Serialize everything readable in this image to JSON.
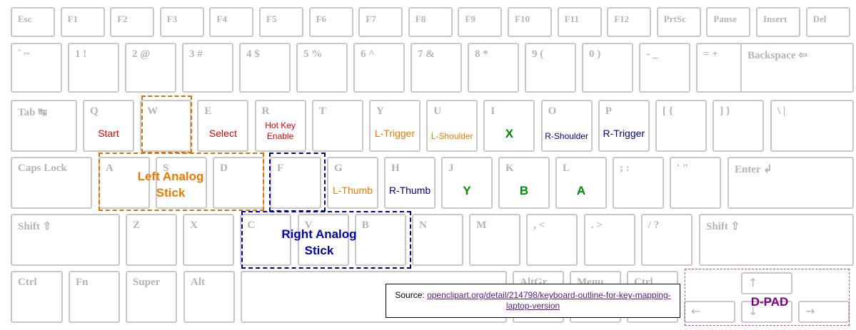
{
  "keyboard": {
    "rows": [
      [
        {
          "label": "Esc"
        },
        {
          "label": "F1"
        },
        {
          "label": "F2"
        },
        {
          "label": "F3"
        },
        {
          "label": "F4"
        },
        {
          "label": "F5"
        },
        {
          "label": "F6"
        },
        {
          "label": "F7"
        },
        {
          "label": "F8"
        },
        {
          "label": "F9"
        },
        {
          "label": "F10"
        },
        {
          "label": "F11"
        },
        {
          "label": "F12"
        },
        {
          "label": "PrtSc"
        },
        {
          "label": "Pause"
        },
        {
          "label": "Insert"
        },
        {
          "label": "Del"
        }
      ],
      [
        {
          "label": "` ~"
        },
        {
          "label": "1 !"
        },
        {
          "label": "2 @"
        },
        {
          "label": "3 #"
        },
        {
          "label": "4 $"
        },
        {
          "label": "5 %"
        },
        {
          "label": "6 ^"
        },
        {
          "label": "7 &"
        },
        {
          "label": "8 *"
        },
        {
          "label": "9 ("
        },
        {
          "label": "0 )"
        },
        {
          "label": "- _"
        },
        {
          "label": "= +"
        },
        {
          "label": "Backspace ⇦"
        }
      ],
      [
        {
          "label": "Tab ↹"
        },
        {
          "label": "Q",
          "action": "Start",
          "color": "#e00000"
        },
        {
          "label": "W"
        },
        {
          "label": "E",
          "action": "Select",
          "color": "#e00000"
        },
        {
          "label": "R",
          "action": "Hot Key Enable",
          "color": "#e00000"
        },
        {
          "label": "T"
        },
        {
          "label": "Y",
          "action": "L-Trigger",
          "color": "#f07800"
        },
        {
          "label": "U",
          "action": "L-Shoulder",
          "color": "#f07800"
        },
        {
          "label": "I",
          "action": "X",
          "color": "#008a00"
        },
        {
          "label": "O",
          "action": "R-Shoulder",
          "color": "#000090"
        },
        {
          "label": "P",
          "action": "R-Trigger",
          "color": "#000090"
        },
        {
          "label": "[ {"
        },
        {
          "label": "] }"
        },
        {
          "label": "\\ |"
        }
      ],
      [
        {
          "label": "Caps Lock"
        },
        {
          "label": "A"
        },
        {
          "label": "S"
        },
        {
          "label": "D"
        },
        {
          "label": "F"
        },
        {
          "label": "G",
          "action": "L-Thumb",
          "color": "#f07800"
        },
        {
          "label": "H",
          "action": "R-Thumb",
          "color": "#000090"
        },
        {
          "label": "J",
          "action": "Y",
          "color": "#008a00"
        },
        {
          "label": "K",
          "action": "B",
          "color": "#008a00"
        },
        {
          "label": "L",
          "action": "A",
          "color": "#008a00"
        },
        {
          "label": "; :"
        },
        {
          "label": "' \""
        },
        {
          "label": "Enter ↲"
        }
      ],
      [
        {
          "label": "Shift ⇧"
        },
        {
          "label": "Z"
        },
        {
          "label": "X"
        },
        {
          "label": "C"
        },
        {
          "label": "V"
        },
        {
          "label": "B"
        },
        {
          "label": "N"
        },
        {
          "label": "M"
        },
        {
          "label": ", <"
        },
        {
          "label": ". >"
        },
        {
          "label": "/ ?"
        },
        {
          "label": "Shift ⇧"
        }
      ],
      [
        {
          "label": "Ctrl"
        },
        {
          "label": "Fn"
        },
        {
          "label": "Super"
        },
        {
          "label": "Alt"
        },
        {
          "label": "AltGr"
        },
        {
          "label": "Menu"
        },
        {
          "label": "Ctrl"
        }
      ]
    ],
    "arrows": [
      "↑",
      "←",
      "↓",
      "→"
    ]
  },
  "overlays": {
    "left_stick": "Left Analog Stick",
    "right_stick": "Right Analog Stick",
    "dpad": "D-PAD"
  },
  "source": {
    "label": "Source:",
    "link": "openclipart.org/detail/214798/keyboard-outline-for-key-mapping-laptop-version"
  }
}
